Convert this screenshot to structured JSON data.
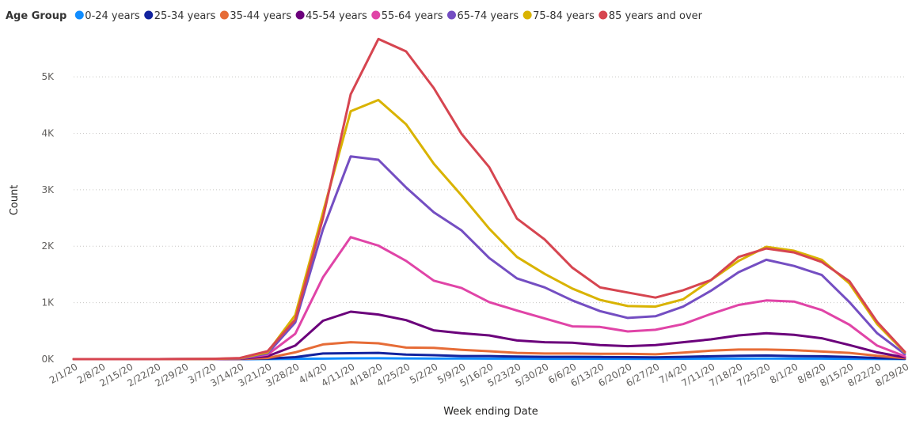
{
  "legend": {
    "title": "Age Group"
  },
  "colors": {
    "tick_text": "#605e5c",
    "axis_title": "#252423",
    "gridline": "#c8c6c4"
  },
  "chart_data": {
    "type": "line",
    "xlabel": "Week ending Date",
    "ylabel": "Count",
    "ylim": [
      0,
      5800
    ],
    "yticks": [
      0,
      1000,
      2000,
      3000,
      4000,
      5000
    ],
    "ytick_labels": [
      "0K",
      "1K",
      "2K",
      "3K",
      "4K",
      "5K"
    ],
    "grid": "horizontal dotted",
    "legend_position": "top-left",
    "x": [
      "2/1/20",
      "2/8/20",
      "2/15/20",
      "2/22/20",
      "2/29/20",
      "3/7/20",
      "3/14/20",
      "3/21/20",
      "3/28/20",
      "4/4/20",
      "4/11/20",
      "4/18/20",
      "4/25/20",
      "5/2/20",
      "5/9/20",
      "5/16/20",
      "5/23/20",
      "5/30/20",
      "6/6/20",
      "6/13/20",
      "6/20/20",
      "6/27/20",
      "7/4/20",
      "7/11/20",
      "7/18/20",
      "7/25/20",
      "8/1/20",
      "8/8/20",
      "8/15/20",
      "8/22/20",
      "8/29/20"
    ],
    "series": [
      {
        "name": "0-24 years",
        "color": "#118dff",
        "values": [
          0,
          0,
          0,
          0,
          0,
          0,
          0,
          2,
          5,
          8,
          14,
          15,
          12,
          11,
          10,
          9,
          8,
          7,
          7,
          7,
          6,
          6,
          7,
          8,
          9,
          10,
          9,
          8,
          6,
          4,
          2
        ]
      },
      {
        "name": "25-34 years",
        "color": "#12239e",
        "values": [
          0,
          0,
          0,
          0,
          0,
          0,
          1,
          8,
          35,
          100,
          105,
          110,
          80,
          70,
          55,
          55,
          45,
          40,
          40,
          38,
          35,
          32,
          40,
          50,
          60,
          65,
          55,
          50,
          38,
          20,
          5
        ]
      },
      {
        "name": "35-44 years",
        "color": "#e66c37",
        "values": [
          0,
          0,
          0,
          0,
          0,
          1,
          3,
          20,
          120,
          260,
          300,
          280,
          205,
          200,
          165,
          140,
          110,
          100,
          100,
          95,
          95,
          85,
          115,
          150,
          170,
          170,
          160,
          135,
          110,
          60,
          15
        ]
      },
      {
        "name": "45-54 years",
        "color": "#6b007b",
        "values": [
          0,
          0,
          0,
          0,
          1,
          2,
          5,
          50,
          240,
          680,
          840,
          790,
          690,
          510,
          460,
          420,
          330,
          300,
          290,
          250,
          230,
          250,
          300,
          350,
          420,
          460,
          430,
          370,
          250,
          120,
          30
        ]
      },
      {
        "name": "55-64 years",
        "color": "#e044a7",
        "values": [
          0,
          0,
          0,
          0,
          1,
          3,
          10,
          80,
          450,
          1450,
          2160,
          2010,
          1740,
          1390,
          1260,
          1010,
          860,
          720,
          580,
          570,
          490,
          520,
          620,
          800,
          960,
          1040,
          1020,
          870,
          610,
          240,
          50
        ]
      },
      {
        "name": "65-74 years",
        "color": "#744ec2",
        "values": [
          0,
          0,
          0,
          0,
          1,
          3,
          10,
          100,
          650,
          2300,
          3590,
          3530,
          3040,
          2600,
          2280,
          1790,
          1430,
          1270,
          1040,
          850,
          730,
          760,
          930,
          1210,
          1540,
          1760,
          1650,
          1490,
          1010,
          460,
          90
        ]
      },
      {
        "name": "75-84 years",
        "color": "#d9b300",
        "values": [
          0,
          0,
          0,
          0,
          2,
          4,
          15,
          120,
          780,
          2600,
          4390,
          4590,
          4160,
          3460,
          2900,
          2310,
          1810,
          1510,
          1250,
          1050,
          940,
          930,
          1060,
          1400,
          1740,
          1990,
          1920,
          1760,
          1340,
          620,
          120
        ]
      },
      {
        "name": "85 years and over",
        "color": "#d64550",
        "values": [
          0,
          0,
          0,
          0,
          2,
          5,
          20,
          140,
          700,
          2500,
          4690,
          5670,
          5450,
          4800,
          3990,
          3400,
          2490,
          2120,
          1620,
          1270,
          1180,
          1090,
          1220,
          1400,
          1810,
          1960,
          1890,
          1720,
          1380,
          660,
          130
        ]
      }
    ]
  }
}
